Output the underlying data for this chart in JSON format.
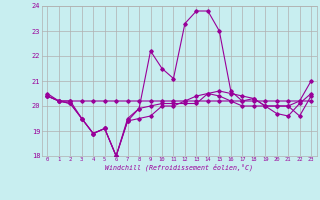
{
  "xlabel": "Windchill (Refroidissement éolien,°C)",
  "background_color": "#c8eef0",
  "grid_color": "#b0b0b0",
  "line_color": "#990099",
  "xmin": 0,
  "xmax": 23,
  "ymin": 18,
  "ymax": 24,
  "x": [
    0,
    1,
    2,
    3,
    4,
    5,
    6,
    7,
    8,
    9,
    10,
    11,
    12,
    13,
    14,
    15,
    16,
    17,
    18,
    19,
    20,
    21,
    22,
    23
  ],
  "line1": [
    20.5,
    20.2,
    20.2,
    20.2,
    20.2,
    20.2,
    20.2,
    20.2,
    20.2,
    20.2,
    20.2,
    20.2,
    20.2,
    20.2,
    20.2,
    20.2,
    20.2,
    20.2,
    20.2,
    20.2,
    20.2,
    20.2,
    20.2,
    20.2
  ],
  "line2": [
    20.4,
    20.2,
    20.1,
    19.5,
    18.9,
    19.1,
    18.0,
    19.4,
    19.5,
    19.6,
    20.0,
    20.0,
    20.2,
    20.4,
    20.5,
    20.6,
    20.5,
    20.4,
    20.3,
    20.0,
    19.7,
    19.6,
    20.1,
    20.5
  ],
  "line3": [
    20.4,
    20.2,
    20.1,
    19.5,
    18.9,
    19.1,
    18.0,
    19.4,
    19.9,
    20.0,
    20.1,
    20.1,
    20.1,
    20.1,
    20.5,
    20.4,
    20.2,
    20.0,
    20.0,
    20.0,
    20.0,
    20.0,
    19.6,
    20.4
  ],
  "line4": [
    20.4,
    20.2,
    20.2,
    19.5,
    18.9,
    19.1,
    18.0,
    19.5,
    19.9,
    22.2,
    21.5,
    21.1,
    23.3,
    23.8,
    23.8,
    23.0,
    20.6,
    20.2,
    20.3,
    20.0,
    20.0,
    20.0,
    20.2,
    21.0
  ],
  "yticks": [
    18,
    19,
    20,
    21,
    22,
    23,
    24
  ]
}
